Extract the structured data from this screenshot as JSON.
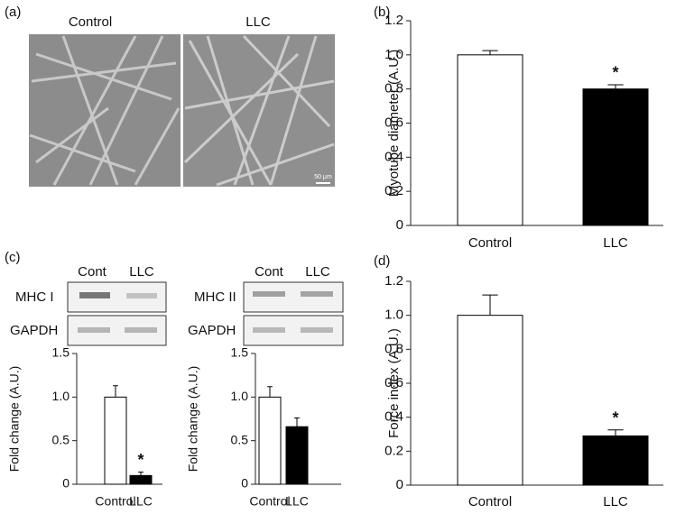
{
  "images": {
    "panel": "(a)",
    "titles": [
      "Control",
      "LLC"
    ],
    "scale_bar": "50 μm"
  },
  "blots": {
    "panel": "(c)",
    "groups": [
      {
        "lanes": [
          "Cont",
          "LLC"
        ],
        "rows": [
          "MHC I",
          "GAPDH"
        ]
      },
      {
        "lanes": [
          "Cont",
          "LLC"
        ],
        "rows": [
          "MHC II",
          "GAPDH"
        ]
      }
    ]
  },
  "chart_data": [
    {
      "type": "bar",
      "panel": "(b)",
      "ylabel": "Myotube diameter (A.U.)",
      "categories": [
        "Control",
        "LLC"
      ],
      "values": [
        1,
        0.8
      ],
      "errors": [
        0.025,
        0.025
      ],
      "colors": [
        "#ffffff",
        "#000000"
      ],
      "significance": [
        null,
        "*"
      ],
      "ylim": [
        0,
        1.2
      ],
      "yticks": [
        0,
        0.2,
        0.4,
        0.6,
        0.8,
        {
          "value": 1,
          "label": "1.0"
        },
        1.2
      ]
    },
    {
      "type": "bar",
      "ylabel": "Fold change (A.U.)",
      "categories": [
        "Control",
        "LLC"
      ],
      "values": [
        1,
        0.1
      ],
      "errors": [
        0.13,
        0.04
      ],
      "colors": [
        "#ffffff",
        "#000000"
      ],
      "significance": [
        null,
        "*"
      ],
      "ylim": [
        0,
        1.5
      ],
      "yticks": [
        0,
        0.5,
        {
          "value": 1,
          "label": "1.0"
        },
        1.5
      ]
    },
    {
      "type": "bar",
      "ylabel": "Fold change (A.U.)",
      "categories": [
        "Control",
        "LLC"
      ],
      "values": [
        1,
        0.66
      ],
      "errors": [
        0.12,
        0.1
      ],
      "colors": [
        "#ffffff",
        "#000000"
      ],
      "ylim": [
        0,
        1.5
      ],
      "yticks": [
        0,
        0.5,
        {
          "value": 1,
          "label": "1.0"
        },
        1.5
      ]
    },
    {
      "type": "bar",
      "panel": "(d)",
      "ylabel": "Force index (A.U.)",
      "categories": [
        "Control",
        "LLC"
      ],
      "values": [
        1,
        0.29
      ],
      "errors": [
        0.12,
        0.035
      ],
      "colors": [
        "#ffffff",
        "#000000"
      ],
      "significance": [
        null,
        "*"
      ],
      "ylim": [
        0,
        1.2
      ],
      "yticks": [
        0,
        0.2,
        0.4,
        0.6,
        0.8,
        {
          "value": 1,
          "label": "1.0"
        },
        1.2
      ]
    }
  ]
}
